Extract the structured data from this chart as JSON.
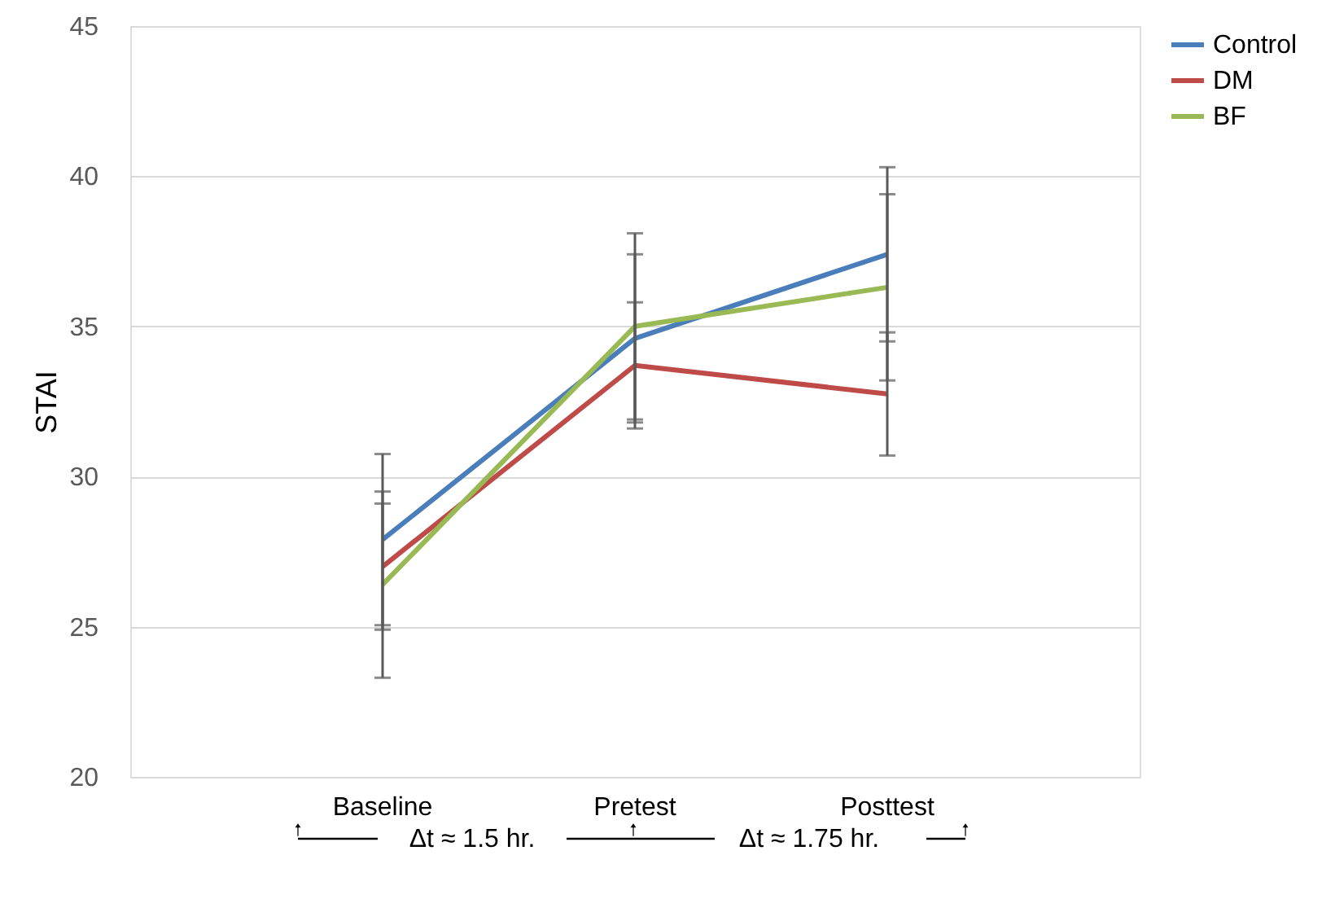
{
  "chart_data": {
    "type": "line",
    "ylabel": "STAI",
    "categories": [
      "Baseline",
      "Pretest",
      "Posttest"
    ],
    "series": [
      {
        "name": "Control",
        "color": "#4a7ebb",
        "values": [
          27.9,
          34.6,
          37.4
        ],
        "errors": [
          2.85,
          2.8,
          2.9
        ]
      },
      {
        "name": "DM",
        "color": "#be4b48",
        "values": [
          27.0,
          33.7,
          32.75
        ],
        "errors": [
          2.1,
          2.1,
          2.05
        ]
      },
      {
        "name": "BF",
        "color": "#98b954",
        "values": [
          26.4,
          35.0,
          36.3
        ],
        "errors": [
          3.1,
          3.1,
          3.1
        ]
      }
    ],
    "ylim": [
      20,
      45
    ],
    "yticks": [
      20,
      25,
      30,
      35,
      40,
      45
    ],
    "grid": "y",
    "legend": "right",
    "marker": "none",
    "line_style": "solid",
    "annotations": [
      "Δt ≈ 1.5 hr.",
      "Δt ≈ 1.75 hr."
    ]
  }
}
